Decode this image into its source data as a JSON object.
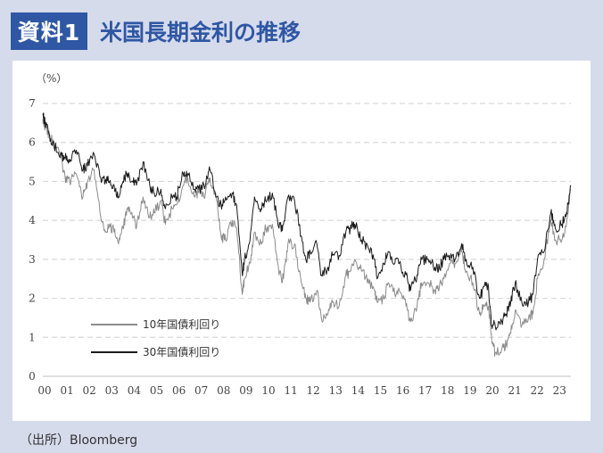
{
  "header": {
    "badge": "資料1",
    "title": "米国長期金利の推移"
  },
  "source": "（出所）Bloomberg",
  "chart_data": {
    "type": "line",
    "title": "米国長期金利の推移",
    "ylabel": "（%）",
    "ylim": [
      0,
      7
    ],
    "yticks": [
      0,
      1,
      2,
      3,
      4,
      5,
      6,
      7
    ],
    "xlim": [
      2000,
      2023.7
    ],
    "xticks": [
      "00",
      "01",
      "02",
      "03",
      "04",
      "05",
      "06",
      "07",
      "08",
      "09",
      "10",
      "11",
      "12",
      "13",
      "14",
      "15",
      "16",
      "17",
      "18",
      "19",
      "20",
      "21",
      "22",
      "23"
    ],
    "grid": "horizontal-dashed",
    "legend_position": "bottom-left",
    "series": [
      {
        "name": "10年国債利回り",
        "color": "#8c8c8c",
        "x": [
          2000.0,
          2000.1,
          2000.3,
          2000.5,
          2000.8,
          2001.0,
          2001.2,
          2001.5,
          2001.8,
          2002.0,
          2002.3,
          2002.6,
          2002.8,
          2003.0,
          2003.2,
          2003.4,
          2003.6,
          2003.8,
          2004.0,
          2004.2,
          2004.5,
          2004.8,
          2005.0,
          2005.3,
          2005.5,
          2005.8,
          2006.0,
          2006.3,
          2006.5,
          2006.8,
          2007.0,
          2007.3,
          2007.5,
          2007.8,
          2008.0,
          2008.2,
          2008.5,
          2008.7,
          2008.95,
          2009.05,
          2009.3,
          2009.5,
          2009.8,
          2010.0,
          2010.3,
          2010.6,
          2010.8,
          2011.0,
          2011.3,
          2011.6,
          2011.8,
          2012.0,
          2012.3,
          2012.5,
          2012.8,
          2013.0,
          2013.3,
          2013.6,
          2013.8,
          2014.0,
          2014.3,
          2014.6,
          2014.9,
          2015.0,
          2015.3,
          2015.5,
          2015.8,
          2016.0,
          2016.3,
          2016.5,
          2016.8,
          2017.0,
          2017.3,
          2017.6,
          2017.8,
          2018.0,
          2018.3,
          2018.5,
          2018.8,
          2019.0,
          2019.3,
          2019.6,
          2019.8,
          2020.0,
          2020.15,
          2020.3,
          2020.6,
          2020.8,
          2021.0,
          2021.2,
          2021.5,
          2021.8,
          2022.0,
          2022.2,
          2022.5,
          2022.8,
          2023.0,
          2023.3,
          2023.5,
          2023.7
        ],
        "y": [
          6.6,
          6.4,
          6.2,
          6.0,
          5.6,
          5.1,
          5.0,
          5.2,
          4.6,
          5.0,
          5.3,
          4.1,
          3.7,
          3.9,
          3.7,
          3.4,
          3.8,
          4.3,
          4.2,
          3.8,
          4.6,
          4.1,
          4.2,
          4.5,
          3.9,
          4.3,
          4.4,
          4.9,
          5.1,
          4.6,
          4.7,
          4.7,
          5.1,
          4.5,
          3.6,
          3.5,
          4.0,
          3.8,
          2.1,
          2.5,
          2.9,
          3.7,
          3.4,
          3.8,
          3.9,
          2.6,
          2.5,
          3.4,
          3.4,
          2.4,
          2.0,
          1.9,
          2.2,
          1.5,
          1.6,
          1.9,
          1.8,
          2.6,
          2.7,
          3.0,
          2.7,
          2.5,
          2.2,
          1.9,
          2.0,
          2.4,
          2.1,
          2.2,
          1.8,
          1.4,
          1.8,
          2.4,
          2.4,
          2.2,
          2.3,
          2.5,
          2.9,
          2.9,
          3.2,
          2.7,
          2.4,
          1.6,
          1.8,
          1.8,
          0.9,
          0.6,
          0.7,
          0.8,
          1.1,
          1.7,
          1.3,
          1.5,
          1.6,
          2.5,
          3.0,
          4.0,
          3.5,
          3.5,
          3.9,
          4.8
        ]
      },
      {
        "name": "30年国債利回り",
        "color": "#1a1a1a",
        "x": [
          2000.0,
          2000.1,
          2000.3,
          2000.5,
          2000.8,
          2001.0,
          2001.2,
          2001.5,
          2001.8,
          2002.0,
          2002.3,
          2002.6,
          2002.8,
          2003.0,
          2003.2,
          2003.4,
          2003.6,
          2003.8,
          2004.0,
          2004.2,
          2004.5,
          2004.8,
          2005.0,
          2005.3,
          2005.5,
          2005.8,
          2006.0,
          2006.3,
          2006.5,
          2006.8,
          2007.0,
          2007.3,
          2007.5,
          2007.8,
          2008.0,
          2008.2,
          2008.5,
          2008.7,
          2008.95,
          2009.05,
          2009.3,
          2009.5,
          2009.8,
          2010.0,
          2010.3,
          2010.6,
          2010.8,
          2011.0,
          2011.3,
          2011.6,
          2011.8,
          2012.0,
          2012.3,
          2012.5,
          2012.8,
          2013.0,
          2013.3,
          2013.6,
          2013.8,
          2014.0,
          2014.3,
          2014.6,
          2014.9,
          2015.0,
          2015.3,
          2015.5,
          2015.8,
          2016.0,
          2016.3,
          2016.5,
          2016.8,
          2017.0,
          2017.3,
          2017.6,
          2017.8,
          2018.0,
          2018.3,
          2018.5,
          2018.8,
          2019.0,
          2019.3,
          2019.6,
          2019.8,
          2020.0,
          2020.15,
          2020.3,
          2020.6,
          2020.8,
          2021.0,
          2021.2,
          2021.5,
          2021.8,
          2022.0,
          2022.2,
          2022.5,
          2022.8,
          2023.0,
          2023.3,
          2023.5,
          2023.7
        ],
        "y": [
          6.7,
          6.5,
          6.2,
          5.9,
          5.7,
          5.6,
          5.5,
          5.8,
          5.3,
          5.4,
          5.7,
          5.1,
          5.0,
          5.0,
          4.9,
          4.6,
          5.0,
          5.2,
          5.0,
          4.9,
          5.5,
          4.9,
          4.7,
          4.8,
          4.3,
          4.6,
          4.6,
          5.2,
          5.2,
          4.8,
          4.8,
          4.9,
          5.3,
          4.6,
          4.4,
          4.6,
          4.7,
          4.4,
          2.6,
          3.0,
          3.5,
          4.6,
          4.3,
          4.5,
          4.7,
          3.8,
          3.9,
          4.6,
          4.5,
          3.6,
          3.0,
          3.2,
          3.4,
          2.6,
          2.8,
          3.1,
          3.1,
          3.7,
          3.8,
          3.9,
          3.5,
          3.3,
          3.0,
          2.5,
          2.9,
          3.2,
          2.9,
          2.9,
          2.6,
          2.2,
          2.6,
          3.0,
          3.0,
          2.8,
          2.8,
          3.0,
          3.1,
          3.0,
          3.4,
          3.0,
          2.8,
          2.0,
          2.3,
          2.3,
          1.3,
          1.3,
          1.4,
          1.6,
          1.9,
          2.4,
          1.9,
          1.9,
          2.1,
          3.0,
          3.2,
          4.2,
          3.8,
          3.9,
          4.2,
          4.9
        ]
      }
    ]
  }
}
